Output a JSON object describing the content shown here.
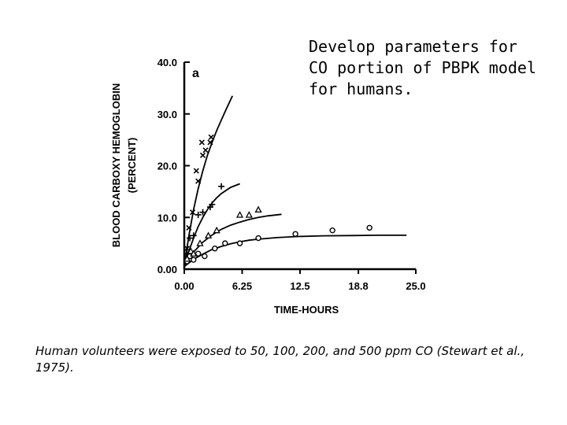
{
  "slide": {
    "title": "Develop parameters for CO portion of PBPK model for humans.",
    "caption": "Human volunteers were exposed to 50, 100, 200, and 500 ppm CO (Stewart et al., 1975)."
  },
  "chart_data": {
    "type": "scatter",
    "panel_label": "a",
    "xlabel": "TIME-HOURS",
    "ylabel": "BLOOD CARBOXY HEMOGLOBIN",
    "ylabel_unit": "(PERCENT)",
    "xlim": [
      0,
      25
    ],
    "ylim": [
      0,
      40
    ],
    "x_ticks": [
      0,
      6.25,
      12.5,
      18.8,
      25.0
    ],
    "x_tick_labels": [
      "0.00",
      "6.25",
      "12.5",
      "18.8",
      "25.0"
    ],
    "y_ticks": [
      0,
      10,
      20,
      30,
      40
    ],
    "y_tick_labels": [
      "0.00",
      "10.0",
      "20.0",
      "30.0",
      "40.0"
    ],
    "grid": false,
    "series": [
      {
        "marker": "circle",
        "points": [
          [
            0.3,
            1.5
          ],
          [
            0.6,
            2.5
          ],
          [
            1.0,
            1.8
          ],
          [
            1.5,
            3.0
          ],
          [
            2.2,
            2.5
          ],
          [
            3.3,
            4.0
          ],
          [
            4.4,
            5.0
          ],
          [
            6.0,
            5.0
          ],
          [
            8.0,
            6.0
          ],
          [
            12.0,
            6.8
          ],
          [
            16.0,
            7.5
          ],
          [
            20.0,
            8.0
          ]
        ],
        "model_curve": [
          [
            0,
            0.5
          ],
          [
            1,
            1.9
          ],
          [
            2,
            2.9
          ],
          [
            3,
            3.8
          ],
          [
            4,
            4.4
          ],
          [
            5,
            4.9
          ],
          [
            6,
            5.3
          ],
          [
            7,
            5.6
          ],
          [
            8,
            5.8
          ],
          [
            10,
            6.1
          ],
          [
            12,
            6.3
          ],
          [
            15,
            6.45
          ],
          [
            18,
            6.5
          ],
          [
            21,
            6.55
          ],
          [
            24,
            6.55
          ]
        ]
      },
      {
        "marker": "triangle",
        "points": [
          [
            0.3,
            2.0
          ],
          [
            0.7,
            3.5
          ],
          [
            1.0,
            3.0
          ],
          [
            1.7,
            5.0
          ],
          [
            2.6,
            6.5
          ],
          [
            3.5,
            7.5
          ],
          [
            6.0,
            10.5
          ],
          [
            7.0,
            10.5
          ],
          [
            8.0,
            11.5
          ]
        ],
        "model_curve": [
          [
            0,
            0.5
          ],
          [
            0.5,
            2.0
          ],
          [
            1,
            3.3
          ],
          [
            2,
            5.2
          ],
          [
            3,
            6.6
          ],
          [
            4,
            7.7
          ],
          [
            5,
            8.5
          ],
          [
            6,
            9.1
          ],
          [
            7,
            9.6
          ],
          [
            8,
            10.0
          ],
          [
            9,
            10.3
          ],
          [
            10.5,
            10.6
          ]
        ]
      },
      {
        "marker": "plus",
        "points": [
          [
            0.3,
            3.0
          ],
          [
            0.6,
            6.0
          ],
          [
            1.0,
            6.5
          ],
          [
            1.5,
            10.5
          ],
          [
            2.0,
            11.0
          ],
          [
            2.8,
            12.0
          ],
          [
            3.0,
            12.5
          ],
          [
            4.0,
            16.0
          ]
        ],
        "model_curve": [
          [
            0,
            0.5
          ],
          [
            0.5,
            3.5
          ],
          [
            1,
            6.0
          ],
          [
            1.5,
            8.2
          ],
          [
            2,
            10.0
          ],
          [
            2.5,
            11.5
          ],
          [
            3,
            12.8
          ],
          [
            3.5,
            13.8
          ],
          [
            4,
            14.6
          ],
          [
            5,
            15.8
          ],
          [
            6,
            16.5
          ]
        ]
      },
      {
        "marker": "cross",
        "points": [
          [
            0.3,
            4.0
          ],
          [
            0.5,
            8.0
          ],
          [
            0.9,
            11.0
          ],
          [
            1.3,
            19.0
          ],
          [
            1.5,
            17.0
          ],
          [
            2.0,
            22.0
          ],
          [
            1.9,
            24.5
          ],
          [
            2.3,
            23.0
          ],
          [
            2.8,
            24.5
          ],
          [
            2.9,
            25.5
          ]
        ],
        "model_curve": [
          [
            0,
            0.5
          ],
          [
            0.25,
            3.5
          ],
          [
            0.5,
            6.5
          ],
          [
            1,
            11.5
          ],
          [
            1.5,
            15.5
          ],
          [
            2,
            19.0
          ],
          [
            2.5,
            22.0
          ],
          [
            3,
            24.5
          ],
          [
            3.5,
            26.8
          ],
          [
            4,
            28.8
          ],
          [
            4.5,
            30.8
          ],
          [
            5.2,
            33.5
          ]
        ]
      }
    ]
  }
}
